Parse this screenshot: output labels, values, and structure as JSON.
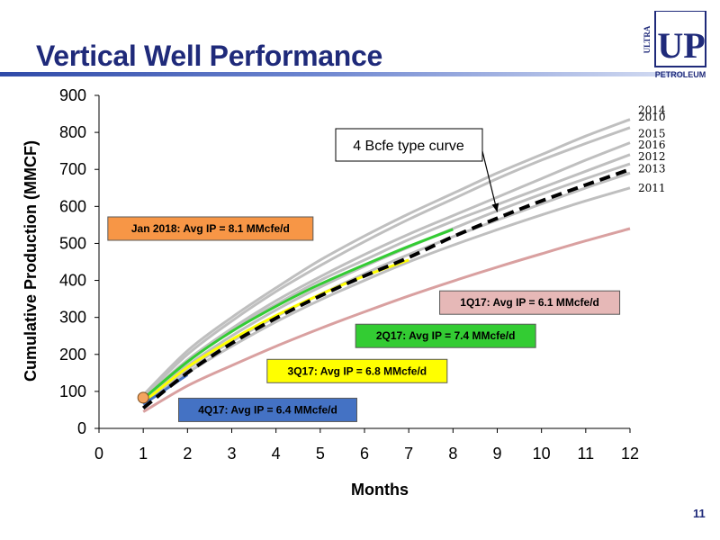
{
  "page": {
    "title": "Vertical Well Performance",
    "page_number": "11"
  },
  "logo": {
    "side_text": "ULTRA",
    "main_text": "UP",
    "bottom_text": "PETROLEUM",
    "color": "#1f2a7a"
  },
  "chart_data": {
    "type": "line",
    "xlabel": "Months",
    "ylabel": "Cumulative Production (MMCF)",
    "xlim": [
      0,
      12
    ],
    "ylim": [
      0,
      900
    ],
    "xticks": [
      0,
      1,
      2,
      3,
      4,
      5,
      6,
      7,
      8,
      9,
      10,
      11,
      12
    ],
    "yticks": [
      0,
      100,
      200,
      300,
      400,
      500,
      600,
      700,
      800,
      900
    ],
    "grid": false,
    "series": [
      {
        "name": "2014",
        "color": "#bfbfbf",
        "style": "solid",
        "x": [
          1,
          2,
          3,
          4,
          5,
          6,
          7,
          8,
          9,
          10,
          11,
          12
        ],
        "y": [
          90,
          210,
          300,
          380,
          455,
          520,
          580,
          635,
          690,
          740,
          790,
          835
        ]
      },
      {
        "name": "2010",
        "color": "#bfbfbf",
        "style": "solid",
        "x": [
          1,
          2,
          3,
          4,
          5,
          6,
          7,
          8,
          9,
          10,
          11,
          12
        ],
        "y": [
          85,
          200,
          290,
          370,
          440,
          505,
          565,
          620,
          675,
          725,
          770,
          813
        ]
      },
      {
        "name": "2015",
        "color": "#bfbfbf",
        "style": "solid",
        "x": [
          1,
          2,
          3,
          4,
          5,
          6,
          7,
          8,
          9,
          10,
          11,
          12
        ],
        "y": [
          80,
          185,
          270,
          345,
          410,
          470,
          525,
          575,
          625,
          675,
          725,
          772
        ]
      },
      {
        "name": "2016",
        "color": "#bfbfbf",
        "style": "solid",
        "x": [
          1,
          2,
          3,
          4,
          5,
          6,
          7,
          8,
          9,
          10,
          11,
          12
        ],
        "y": [
          78,
          180,
          265,
          335,
          400,
          455,
          510,
          560,
          605,
          650,
          695,
          740
        ]
      },
      {
        "name": "2012",
        "color": "#bfbfbf",
        "style": "solid",
        "x": [
          1,
          2,
          3,
          4,
          5,
          6,
          7,
          8,
          9,
          10,
          11,
          12
        ],
        "y": [
          75,
          170,
          250,
          320,
          382,
          438,
          490,
          540,
          588,
          633,
          675,
          715
        ]
      },
      {
        "name": "2013",
        "color": "#bfbfbf",
        "style": "solid",
        "x": [
          1,
          2,
          3,
          4,
          5,
          6,
          7,
          8,
          9,
          10,
          11,
          12
        ],
        "y": [
          70,
          160,
          235,
          302,
          362,
          418,
          470,
          518,
          563,
          607,
          650,
          690
        ]
      },
      {
        "name": "2011",
        "color": "#bfbfbf",
        "style": "solid",
        "x": [
          1,
          2,
          3,
          4,
          5,
          6,
          7,
          8,
          9,
          10,
          11,
          12
        ],
        "y": [
          65,
          150,
          222,
          288,
          347,
          400,
          450,
          495,
          537,
          577,
          615,
          650
        ]
      },
      {
        "name": "1Q17",
        "color": "#d9a0a0",
        "style": "solid",
        "x": [
          1,
          2,
          3,
          4,
          5,
          6,
          7,
          8,
          9,
          10,
          11,
          12
        ],
        "y": [
          45,
          115,
          170,
          222,
          270,
          315,
          358,
          398,
          436,
          472,
          507,
          540
        ]
      },
      {
        "name": "2Q17",
        "color": "#33cc33",
        "style": "solid",
        "x": [
          1,
          2,
          3,
          4,
          5,
          6,
          7,
          8
        ],
        "y": [
          80,
          180,
          262,
          330,
          390,
          442,
          492,
          538
        ]
      },
      {
        "name": "3Q17",
        "color": "#ffff00",
        "style": "solid",
        "x": [
          1,
          2,
          3,
          4,
          5,
          6,
          7
        ],
        "y": [
          70,
          165,
          240,
          305,
          362,
          412,
          455
        ]
      },
      {
        "name": "4Q17",
        "color": "#4472c4",
        "style": "solid",
        "x": [
          1,
          2
        ],
        "y": [
          65,
          145
        ]
      },
      {
        "name": "4 Bcfe type curve",
        "color": "#000000",
        "style": "dashed",
        "x": [
          1,
          2,
          3,
          4,
          5,
          6,
          7,
          8,
          9,
          10,
          11,
          12
        ],
        "y": [
          55,
          150,
          230,
          298,
          358,
          412,
          462,
          518,
          568,
          615,
          658,
          700
        ]
      }
    ],
    "points": [
      {
        "name": "Jan 2018",
        "x": 1,
        "y": 83,
        "color": "#f4a460"
      }
    ],
    "annotations": [
      {
        "text": "2014",
        "series": "2014"
      },
      {
        "text": "2010",
        "series": "2010"
      },
      {
        "text": "2015",
        "series": "2015"
      },
      {
        "text": "2016",
        "series": "2016"
      },
      {
        "text": "2012",
        "series": "2012"
      },
      {
        "text": "2013",
        "series": "2013"
      },
      {
        "text": "2011",
        "series": "2011"
      }
    ],
    "callout": {
      "text": "4 Bcfe type curve",
      "arrow_to": [
        9,
        585
      ]
    },
    "labels": [
      {
        "text": "Jan 2018:  Avg IP = 8.1 MMcfe/d",
        "fill": "#f79646",
        "anchor": [
          0.2,
          540
        ]
      },
      {
        "text": "1Q17:  Avg IP = 6.1 MMcfe/d",
        "fill": "#e6b8b7",
        "anchor": [
          7.7,
          340
        ]
      },
      {
        "text": "2Q17:  Avg IP = 7.4 MMcfe/d",
        "fill": "#33cc33",
        "anchor": [
          5.8,
          250
        ]
      },
      {
        "text": "3Q17:  Avg IP = 6.8 MMcfe/d",
        "fill": "#ffff00",
        "anchor": [
          3.8,
          155
        ]
      },
      {
        "text": "4Q17:  Avg IP = 6.4 MMcfe/d",
        "fill": "#4472c4",
        "anchor": [
          1.8,
          50
        ]
      }
    ]
  }
}
